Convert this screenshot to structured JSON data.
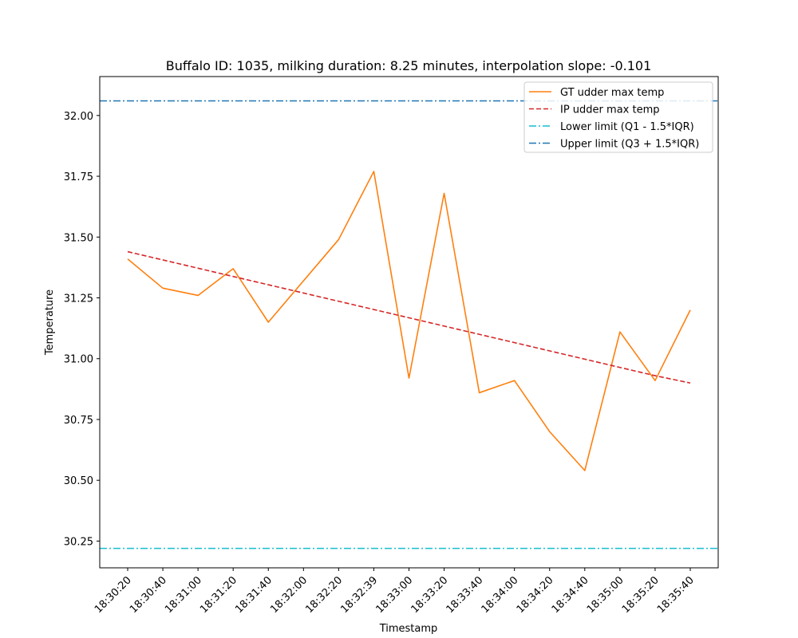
{
  "chart_data": {
    "type": "line",
    "title": "Buffalo ID: 1035, milking duration: 8.25 minutes, interpolation slope: -0.101",
    "xlabel": "Timestamp",
    "ylabel": "Temperature",
    "x": [
      "18:30:20",
      "18:30:40",
      "18:31:00",
      "18:31:20",
      "18:31:40",
      "18:32:00",
      "18:32:20",
      "18:32:39",
      "18:33:00",
      "18:33:20",
      "18:33:40",
      "18:34:00",
      "18:34:20",
      "18:34:40",
      "18:35:00",
      "18:35:20",
      "18:35:40"
    ],
    "ylim": [
      30.14,
      32.16
    ],
    "yticks": [
      "30.25",
      "30.50",
      "30.75",
      "31.00",
      "31.25",
      "31.50",
      "31.75",
      "32.00"
    ],
    "grid": false,
    "legend_position": "top-right",
    "series": [
      {
        "name": "GT udder max temp",
        "color": "#ff7f0e",
        "style": "solid",
        "values": [
          31.41,
          31.29,
          31.26,
          31.37,
          31.15,
          31.32,
          31.49,
          31.77,
          30.92,
          31.68,
          30.86,
          30.91,
          30.7,
          30.54,
          31.11,
          30.91,
          31.2
        ]
      },
      {
        "name": "IP udder max temp",
        "color": "#d62728",
        "style": "dashed",
        "values": [
          31.44,
          31.406,
          31.372,
          31.338,
          31.304,
          31.27,
          31.236,
          31.202,
          31.168,
          31.134,
          31.1,
          31.066,
          31.032,
          30.998,
          30.964,
          30.93,
          30.9
        ]
      }
    ],
    "reference_lines": [
      {
        "name": "Lower limit (Q1 - 1.5*IQR)",
        "value": 30.22,
        "color": "#17becf",
        "style": "dashdot"
      },
      {
        "name": "Upper limit (Q3 + 1.5*IQR)",
        "value": 32.06,
        "color": "#1f77b4",
        "style": "dashdot"
      }
    ]
  }
}
